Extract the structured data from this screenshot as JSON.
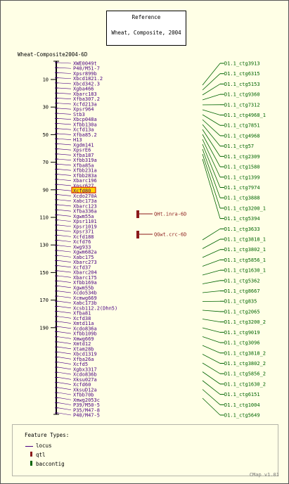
{
  "header": {
    "title": "Reference",
    "subtitle": "Wheat, Composite, 2004"
  },
  "map": {
    "name": "Wheat-Composite2004-6D",
    "ticks": [
      "10",
      "30",
      "50",
      "70",
      "90",
      "110",
      "130",
      "150",
      "170",
      "190"
    ],
    "markers": [
      "XWE0049t",
      "P40/M51-7",
      "Xpsr899b",
      "Xbcd1821.2",
      "Xbcd342.3",
      "Xgba466",
      "Xbarc183",
      "Xfba307.2",
      "Xcfd213a",
      "Xpsr964",
      "Stb3",
      "Xbcp048a",
      "Xfbb130a",
      "Xcfd13a",
      "Xfba85.2",
      "H13",
      "Xgdm141",
      "XpsrE6",
      "Xfba187",
      "Xfbb319a",
      "Xfba85a",
      "Xfbb231a",
      "Xfbb283a",
      "Xbarc196",
      "Xpsr627",
      "Xcfd80",
      "Xcdo270A",
      "Xabc173a",
      "Xbarc123",
      "Xfba336a",
      "Xgwm55a",
      "Xpsr1101",
      "Xpsr1019",
      "Xpsr371",
      "Xcfd188",
      "Xcfd76",
      "Xwg933",
      "Xgwm682a",
      "Xabc175",
      "Xbarc273",
      "Xcfd37",
      "Xbarc204",
      "Xbarc175",
      "Xfbb169a",
      "Xgwm55b",
      "Xcdo534b",
      "Xcmwg669",
      "Xabc173b",
      "Xcsb112.2(Dhn5)",
      "Xfba81",
      "Xcfd38",
      "Xmtd11a",
      "Xcdo836a",
      "Xfbb109b",
      "Xmwg669",
      "Xmtd12",
      "Xtam28b",
      "Xbcd1319",
      "Xfba26a",
      "Xcfd5",
      "Xgbx3317",
      "Xcdo836b",
      "Xksu027a",
      "Xcfd60",
      "XksuD12a",
      "Xfbb70b",
      "Xmwg2053c",
      "P39/M50-5",
      "P35/M47-8",
      "P40/M47-5"
    ],
    "highlighted": "Xcfd80",
    "qtls": [
      "QHt.inra-6D",
      "QGwt.crc-6D"
    ],
    "contigs": [
      "D1.1_ctg3913",
      "D1.1_ctg6315",
      "D1.1_ctg5153",
      "D1.1_ctg9360",
      "D1.1_ctg7312",
      "D1.1_ctg4968_1",
      "D1.1_ctg7851",
      "D1.1_ctg4968",
      "D1.1_ctg57",
      "D1.1_ctg2309",
      "D1.1_ctg1580",
      "D1.1_ctg1399",
      "D1.1_ctg7974",
      "D1.1_ctg3888",
      "D1.1_ctg3200_1",
      "D1.1_ctg5394",
      "D1.1_ctg3633",
      "D1.1_ctg3818_1",
      "D1.1_ctg3802_1",
      "D1.1_ctg5856_1",
      "D1.1_ctg1630_1",
      "D1.1_ctg5362",
      "D1.1_ctg8667",
      "D1.1_ctg835",
      "D1.1_ctg2065",
      "D1.1_ctg3200_2",
      "D1.1_ctg9019",
      "D1.1_ctg3096",
      "D1.1_ctg3818_2",
      "D1.1_ctg3802_2",
      "D1.1_ctg5856_2",
      "D1.1_ctg1630_2",
      "D1.1_ctg6151",
      "D1.1_ctg1004",
      "D1.1_ctg5649"
    ]
  },
  "legend": {
    "title": "Feature Types:",
    "items": [
      {
        "label": "locus",
        "color": "#4b0082"
      },
      {
        "label": "qtl",
        "color": "#8b1a1a"
      },
      {
        "label": "baccontig",
        "color": "#006400"
      }
    ]
  },
  "footer": {
    "version": "CMap v1.01"
  }
}
